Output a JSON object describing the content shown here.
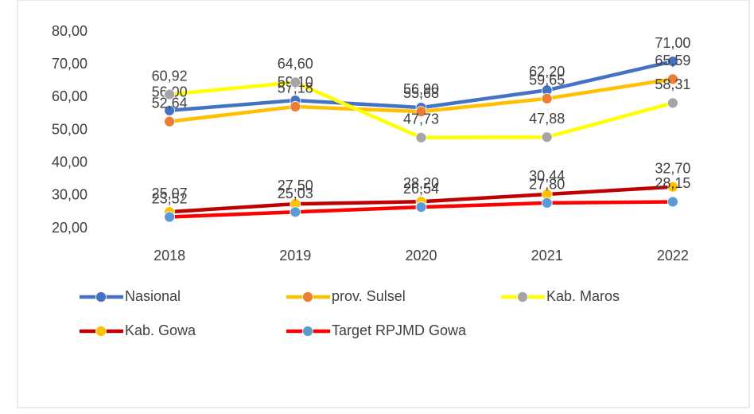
{
  "chart_data": {
    "type": "line",
    "categories": [
      "2018",
      "2019",
      "2020",
      "2021",
      "2022"
    ],
    "ylim": [
      20,
      80
    ],
    "yticks": [
      {
        "value": 20,
        "label": "20,00"
      },
      {
        "value": 30,
        "label": "30,00"
      },
      {
        "value": 40,
        "label": "40,00"
      },
      {
        "value": 50,
        "label": "50,00"
      },
      {
        "value": 60,
        "label": "60,00"
      },
      {
        "value": 70,
        "label": "70,00"
      },
      {
        "value": 80,
        "label": "80,00"
      }
    ],
    "grid": false,
    "series": [
      {
        "name": "Nasional",
        "color": "#4472c4",
        "marker_color": "#4472c4",
        "values": [
          56.0,
          59.1,
          56.9,
          62.2,
          71.0
        ],
        "value_labels": [
          "56,00",
          "59,10",
          "56,90",
          "62,20",
          "71,00"
        ]
      },
      {
        "name": "prov. Sulsel",
        "color": "#ffc000",
        "marker_color": "#ed7d31",
        "values": [
          52.64,
          57.18,
          55.68,
          59.65,
          65.59
        ],
        "value_labels": [
          "52,64",
          "57,18",
          "55,68",
          "59,65",
          "65,59"
        ]
      },
      {
        "name": "Kab. Maros",
        "color": "#ffff00",
        "marker_color": "#a5a5a5",
        "values": [
          60.92,
          64.6,
          47.73,
          47.88,
          58.31
        ],
        "value_labels": [
          "60,92",
          "64,60",
          "47,73",
          "47,88",
          "58,31"
        ]
      },
      {
        "name": "Kab. Gowa",
        "color": "#c00000",
        "marker_color": "#ffc000",
        "values": [
          25.07,
          27.5,
          28.2,
          30.44,
          32.7
        ],
        "value_labels": [
          "25,07",
          "27,50",
          "28,20",
          "30,44",
          "32,70"
        ]
      },
      {
        "name": "Target RPJMD Gowa",
        "color": "#ff0000",
        "marker_color": "#5b9bd5",
        "values": [
          23.52,
          25.03,
          26.54,
          27.8,
          28.15
        ],
        "value_labels": [
          "23,52",
          "25,03",
          "26,54",
          "27,80",
          "28,15"
        ]
      }
    ]
  }
}
